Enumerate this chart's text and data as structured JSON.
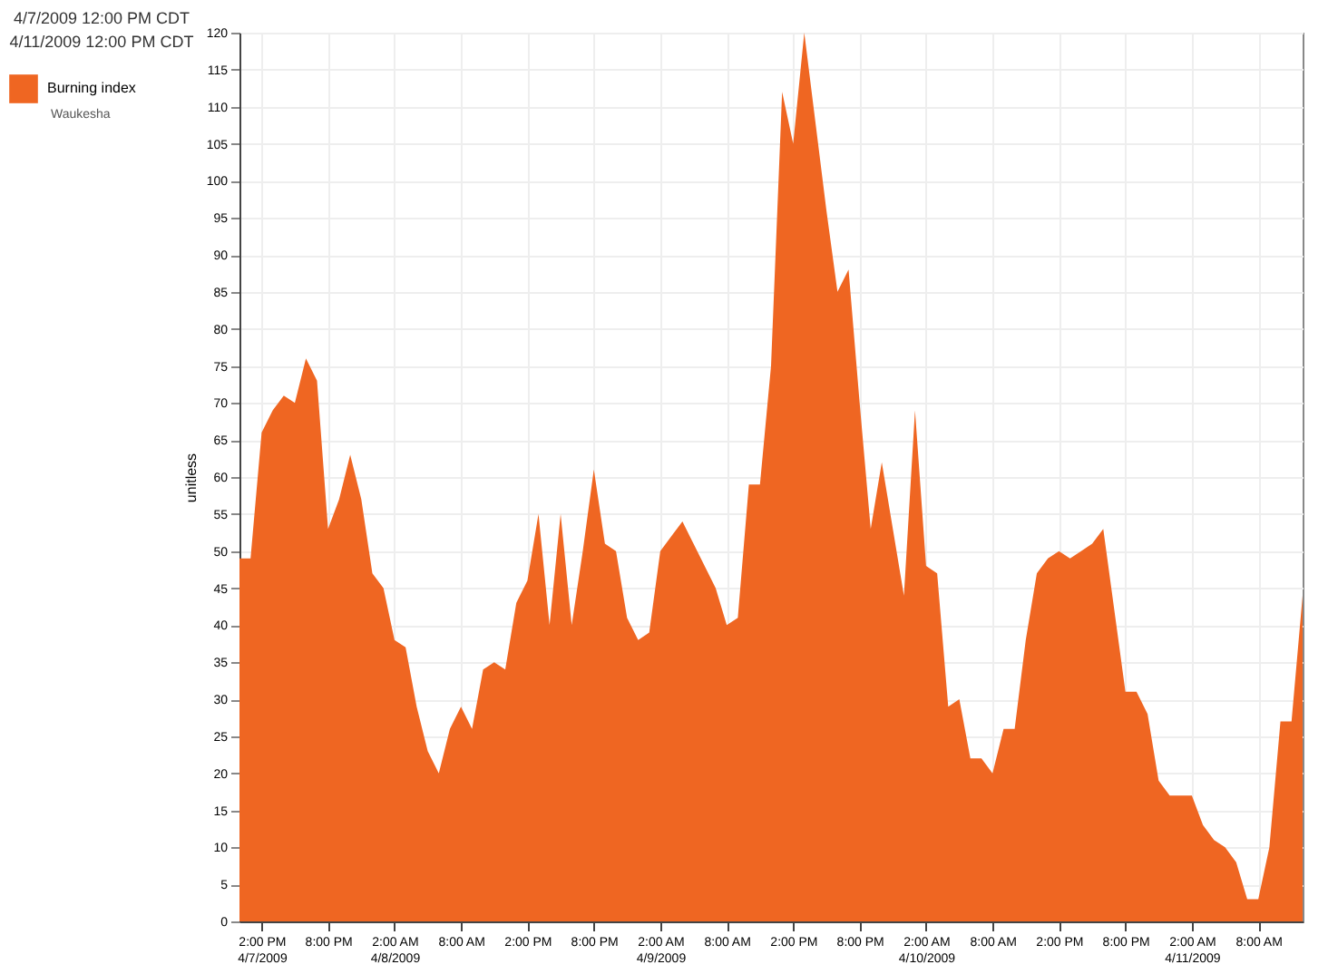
{
  "chart_data": {
    "type": "area",
    "ylabel": "unitless",
    "annotations": [
      "4/7/2009 12:00 PM CDT",
      "4/11/2009 12:00 PM CDT",
      "Waukesha"
    ],
    "x": [
      "2009-04-07T12:00",
      "2009-04-07T13:00",
      "2009-04-07T14:00",
      "2009-04-07T15:00",
      "2009-04-07T16:00",
      "2009-04-07T17:00",
      "2009-04-07T18:00",
      "2009-04-07T19:00",
      "2009-04-07T20:00",
      "2009-04-07T21:00",
      "2009-04-07T22:00",
      "2009-04-07T23:00",
      "2009-04-08T00:00",
      "2009-04-08T01:00",
      "2009-04-08T02:00",
      "2009-04-08T03:00",
      "2009-04-08T04:00",
      "2009-04-08T05:00",
      "2009-04-08T06:00",
      "2009-04-08T07:00",
      "2009-04-08T08:00",
      "2009-04-08T09:00",
      "2009-04-08T10:00",
      "2009-04-08T11:00",
      "2009-04-08T12:00",
      "2009-04-08T13:00",
      "2009-04-08T14:00",
      "2009-04-08T15:00",
      "2009-04-08T16:00",
      "2009-04-08T17:00",
      "2009-04-08T18:00",
      "2009-04-08T19:00",
      "2009-04-08T20:00",
      "2009-04-08T21:00",
      "2009-04-08T22:00",
      "2009-04-08T23:00",
      "2009-04-09T00:00",
      "2009-04-09T01:00",
      "2009-04-09T02:00",
      "2009-04-09T03:00",
      "2009-04-09T04:00",
      "2009-04-09T05:00",
      "2009-04-09T06:00",
      "2009-04-09T07:00",
      "2009-04-09T08:00",
      "2009-04-09T09:00",
      "2009-04-09T10:00",
      "2009-04-09T11:00",
      "2009-04-09T12:00",
      "2009-04-09T13:00",
      "2009-04-09T14:00",
      "2009-04-09T15:00",
      "2009-04-09T16:00",
      "2009-04-09T17:00",
      "2009-04-09T18:00",
      "2009-04-09T19:00",
      "2009-04-09T20:00",
      "2009-04-09T21:00",
      "2009-04-09T22:00",
      "2009-04-09T23:00",
      "2009-04-10T00:00",
      "2009-04-10T01:00",
      "2009-04-10T02:00",
      "2009-04-10T03:00",
      "2009-04-10T04:00",
      "2009-04-10T05:00",
      "2009-04-10T06:00",
      "2009-04-10T07:00",
      "2009-04-10T08:00",
      "2009-04-10T09:00",
      "2009-04-10T10:00",
      "2009-04-10T11:00",
      "2009-04-10T12:00",
      "2009-04-10T13:00",
      "2009-04-10T14:00",
      "2009-04-10T15:00",
      "2009-04-10T16:00",
      "2009-04-10T17:00",
      "2009-04-10T18:00",
      "2009-04-10T19:00",
      "2009-04-10T20:00",
      "2009-04-10T21:00",
      "2009-04-10T22:00",
      "2009-04-10T23:00",
      "2009-04-11T00:00",
      "2009-04-11T01:00",
      "2009-04-11T02:00",
      "2009-04-11T03:00",
      "2009-04-11T04:00",
      "2009-04-11T05:00",
      "2009-04-11T06:00",
      "2009-04-11T07:00",
      "2009-04-11T08:00",
      "2009-04-11T09:00",
      "2009-04-11T10:00",
      "2009-04-11T11:00",
      "2009-04-11T12:00"
    ],
    "series": [
      {
        "name": "Burning index",
        "color": "#ef6622",
        "values": [
          49,
          49,
          66,
          69,
          71,
          70,
          76,
          73,
          53,
          57,
          63,
          57,
          47,
          45,
          38,
          37,
          29,
          23,
          20,
          26,
          29,
          26,
          34,
          35,
          34,
          43,
          46,
          55,
          40,
          55,
          40,
          50,
          61,
          51,
          50,
          41,
          38,
          39,
          50,
          52,
          54,
          51,
          48,
          45,
          40,
          41,
          59,
          59,
          75,
          112,
          105,
          120,
          108,
          96,
          85,
          88,
          70,
          53,
          62,
          53,
          44,
          69,
          48,
          47,
          29,
          30,
          22,
          22,
          20,
          26,
          26,
          38,
          47,
          49,
          50,
          49,
          50,
          51,
          53,
          42,
          31,
          31,
          28,
          19,
          17,
          17,
          17,
          13,
          11,
          10,
          8,
          3,
          3,
          10,
          27,
          27,
          44
        ]
      }
    ],
    "xlim": [
      "2009-04-07T12:00",
      "2009-04-11T12:00"
    ],
    "xticks": [
      {
        "value": "2009-04-07T14:00",
        "label": "2:00 PM\n4/7/2009"
      },
      {
        "value": "2009-04-07T20:00",
        "label": "8:00 PM"
      },
      {
        "value": "2009-04-08T02:00",
        "label": "2:00 AM\n4/8/2009"
      },
      {
        "value": "2009-04-08T08:00",
        "label": "8:00 AM"
      },
      {
        "value": "2009-04-08T14:00",
        "label": "2:00 PM"
      },
      {
        "value": "2009-04-08T20:00",
        "label": "8:00 PM"
      },
      {
        "value": "2009-04-09T02:00",
        "label": "2:00 AM\n4/9/2009"
      },
      {
        "value": "2009-04-09T08:00",
        "label": "8:00 AM"
      },
      {
        "value": "2009-04-09T14:00",
        "label": "2:00 PM"
      },
      {
        "value": "2009-04-09T20:00",
        "label": "8:00 PM"
      },
      {
        "value": "2009-04-10T02:00",
        "label": "2:00 AM\n4/10/2009"
      },
      {
        "value": "2009-04-10T08:00",
        "label": "8:00 AM"
      },
      {
        "value": "2009-04-10T14:00",
        "label": "2:00 PM"
      },
      {
        "value": "2009-04-10T20:00",
        "label": "8:00 PM"
      },
      {
        "value": "2009-04-11T02:00",
        "label": "2:00 AM\n4/11/2009"
      },
      {
        "value": "2009-04-11T08:00",
        "label": "8:00 AM"
      }
    ],
    "ylim": [
      0,
      120
    ],
    "yticks": [
      0,
      5,
      10,
      15,
      20,
      25,
      30,
      35,
      40,
      45,
      50,
      55,
      60,
      65,
      70,
      75,
      80,
      85,
      90,
      95,
      100,
      105,
      110,
      115,
      120
    ],
    "grid": true,
    "legend": "top left"
  }
}
